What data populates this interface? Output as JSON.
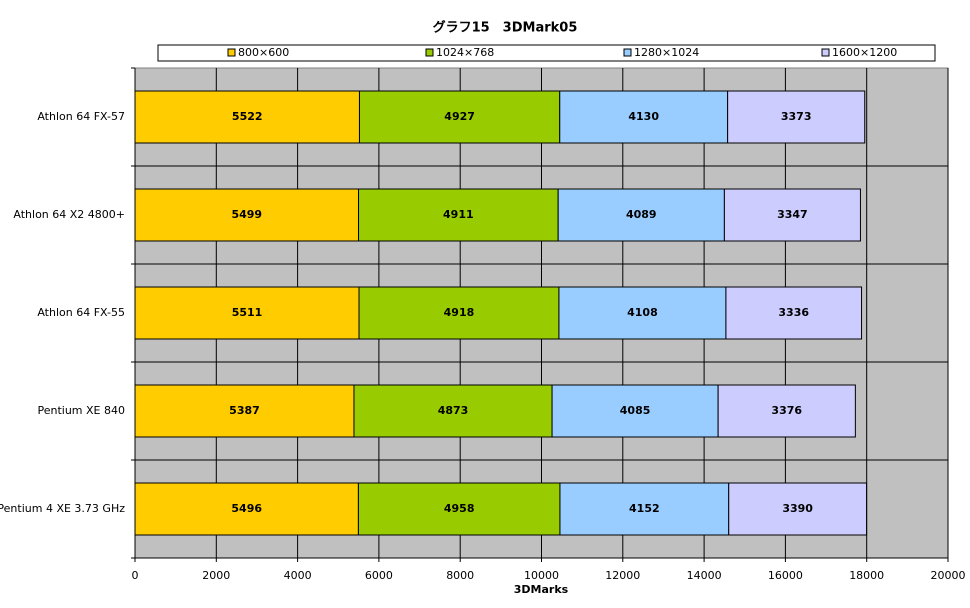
{
  "chart_data": {
    "type": "bar",
    "orientation": "horizontal",
    "stacked": true,
    "title": "グラフ15　3DMark05",
    "x_label": "3DMarks",
    "categories": [
      "Athlon 64 FX-57",
      "Athlon 64 X2 4800+",
      "Athlon 64 FX-55",
      "Pentium XE 840",
      "Pentium 4 XE 3.73 GHz"
    ],
    "series": [
      {
        "name": "800×600",
        "color": "#ffcc00",
        "values": [
          5522,
          5499,
          5511,
          5387,
          5496
        ]
      },
      {
        "name": "1024×768",
        "color": "#99cc00",
        "values": [
          4927,
          4911,
          4918,
          4873,
          4958
        ]
      },
      {
        "name": "1280×1024",
        "color": "#99ccff",
        "values": [
          4130,
          4089,
          4108,
          4085,
          4152
        ]
      },
      {
        "name": "1600×1200",
        "color": "#ccccff",
        "values": [
          3373,
          3347,
          3336,
          3376,
          3390
        ]
      }
    ],
    "xlim": [
      0,
      20000
    ],
    "xticks": [
      0,
      2000,
      4000,
      6000,
      8000,
      10000,
      12000,
      14000,
      16000,
      18000,
      20000
    ],
    "grid": true
  }
}
